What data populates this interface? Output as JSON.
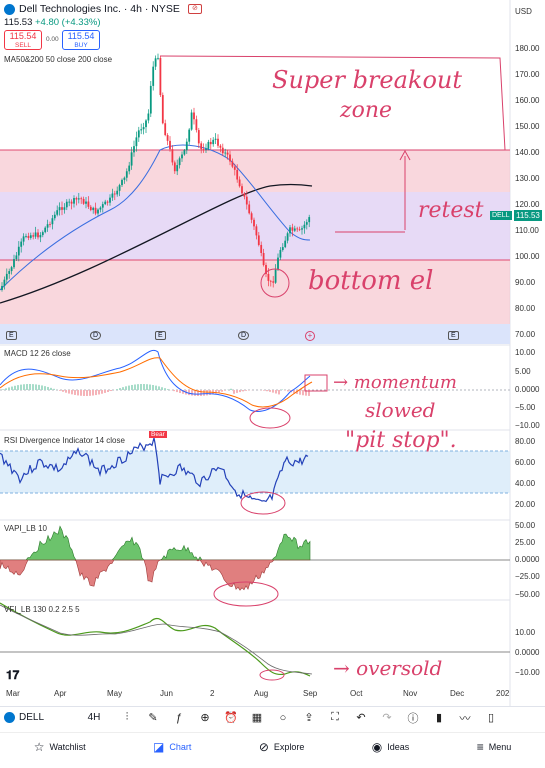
{
  "header": {
    "title": "Dell Technologies Inc. · 4h · NYSE",
    "price": "115.53",
    "change": "+4.80 (+4.33%)",
    "sell_price": "115.54",
    "sell_label": "SELL",
    "spread": "0.00",
    "buy_price": "115.54",
    "buy_label": "BUY",
    "ma_label": "MA50&200 50 close 200 close"
  },
  "indicators": {
    "macd": "MACD 12 26 close",
    "rsi": "RSI Divergence Indicator 14 close",
    "vapi": "VAPI_LB 10",
    "vfi": "VFI_LB 130 0.2 2.5 5",
    "bear": "Bear"
  },
  "price_axis": {
    "currency": "USD",
    "ticks": [
      "180.00",
      "170.00",
      "160.00",
      "150.00",
      "140.00",
      "130.00",
      "120.00",
      "110.00",
      "100.00",
      "90.00",
      "80.00",
      "70.00"
    ],
    "last_price": "115.53",
    "ticker": "DELL"
  },
  "macd_axis": [
    "10.00",
    "5.00",
    "0.0000",
    "−5.00",
    "−10.00"
  ],
  "rsi_axis": [
    "80.00",
    "60.00",
    "40.00",
    "20.00"
  ],
  "vapi_axis": [
    "50.00",
    "25.00",
    "0.0000",
    "−25.00",
    "−50.00"
  ],
  "vfi_axis": [
    "10.00",
    "0.0000",
    "−10.00"
  ],
  "x_axis": [
    "Mar",
    "Apr",
    "May",
    "Jun",
    "2",
    "Aug",
    "Sep",
    "Oct",
    "Nov",
    "Dec",
    "202"
  ],
  "events": [
    "E",
    "D",
    "E",
    "D",
    "E"
  ],
  "annotations": {
    "breakout": "Super breakout",
    "zone": "zone",
    "retest": "retest",
    "bottom": "bottom el",
    "momentum": "→ momentum",
    "slowed": "slowed",
    "pitstop": "\"pit stop\".",
    "oversold": "→ oversold"
  },
  "toolbar": {
    "symbol": "DELL",
    "timeframe": "4H",
    "icons": [
      "draw-icon",
      "indicator-fx-icon",
      "add-icon",
      "alert-icon",
      "layout-icon",
      "idea-icon",
      "share-icon",
      "fullscreen-icon",
      "undo-icon",
      "redo-icon",
      "info-icon",
      "bar-style-icon",
      "compare-icon",
      "device-icon"
    ]
  },
  "nav": {
    "watchlist": "Watchlist",
    "chart": "Chart",
    "explore": "Explore",
    "ideas": "Ideas",
    "menu": "Menu"
  },
  "colors": {
    "up": "#089981",
    "down": "#f23645",
    "accent": "#2962ff",
    "annotation": "#d9416b"
  }
}
